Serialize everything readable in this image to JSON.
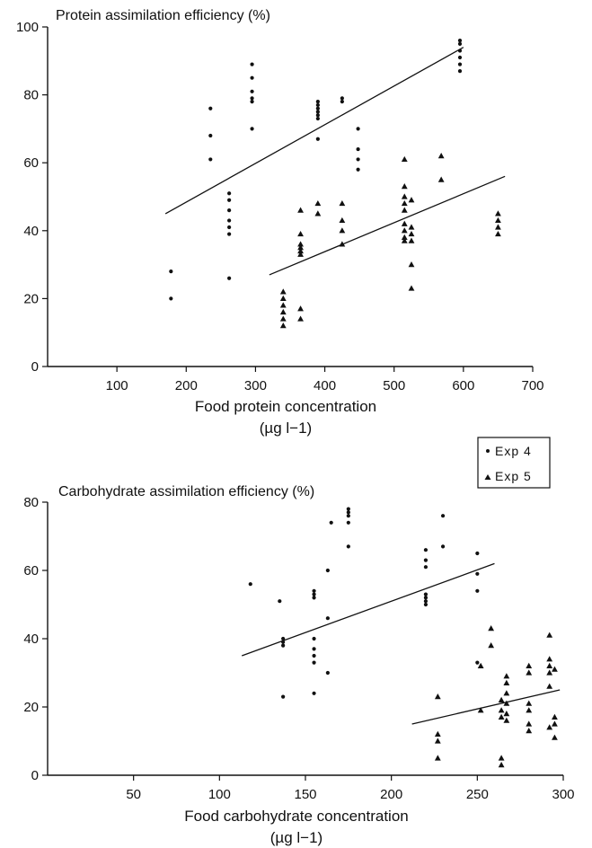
{
  "legend": {
    "entries": [
      {
        "marker": "•",
        "label": "Exp 4"
      },
      {
        "marker": "▲",
        "label": "Exp 5"
      }
    ]
  },
  "chart_data": [
    {
      "type": "scatter",
      "title": "Protein assimilation efficiency (%)",
      "xlabel": "Food protein concentration",
      "xunit": "(µg l−1)",
      "xlim": [
        0,
        700
      ],
      "ylim": [
        0,
        100
      ],
      "xticks": [
        100,
        200,
        300,
        400,
        500,
        600,
        700
      ],
      "yticks": [
        0,
        20,
        40,
        60,
        80,
        100
      ],
      "series": [
        {
          "name": "Exp 4",
          "marker": "dot",
          "points": [
            [
              178,
              28
            ],
            [
              178,
              20
            ],
            [
              235,
              76
            ],
            [
              235,
              68
            ],
            [
              235,
              61
            ],
            [
              262,
              51
            ],
            [
              262,
              49
            ],
            [
              262,
              46
            ],
            [
              262,
              43
            ],
            [
              262,
              41
            ],
            [
              262,
              39
            ],
            [
              262,
              26
            ],
            [
              295,
              89
            ],
            [
              295,
              85
            ],
            [
              295,
              81
            ],
            [
              295,
              79
            ],
            [
              295,
              78
            ],
            [
              295,
              70
            ],
            [
              390,
              78
            ],
            [
              390,
              77
            ],
            [
              390,
              76
            ],
            [
              390,
              75
            ],
            [
              390,
              74
            ],
            [
              390,
              73
            ],
            [
              390,
              67
            ],
            [
              425,
              79
            ],
            [
              425,
              78
            ],
            [
              448,
              70
            ],
            [
              448,
              64
            ],
            [
              448,
              61
            ],
            [
              448,
              58
            ],
            [
              595,
              96
            ],
            [
              595,
              95
            ],
            [
              595,
              93
            ],
            [
              595,
              91
            ],
            [
              595,
              89
            ],
            [
              595,
              87
            ]
          ],
          "fit": [
            [
              170,
              45
            ],
            [
              600,
              94
            ]
          ]
        },
        {
          "name": "Exp 5",
          "marker": "triangle",
          "points": [
            [
              340,
              22
            ],
            [
              340,
              20
            ],
            [
              340,
              18
            ],
            [
              340,
              16
            ],
            [
              340,
              14
            ],
            [
              340,
              12
            ],
            [
              365,
              46
            ],
            [
              365,
              39
            ],
            [
              365,
              36
            ],
            [
              365,
              35
            ],
            [
              365,
              34
            ],
            [
              365,
              33
            ],
            [
              365,
              17
            ],
            [
              365,
              14
            ],
            [
              390,
              48
            ],
            [
              390,
              45
            ],
            [
              425,
              48
            ],
            [
              425,
              43
            ],
            [
              425,
              40
            ],
            [
              425,
              36
            ],
            [
              515,
              61
            ],
            [
              515,
              53
            ],
            [
              515,
              50
            ],
            [
              515,
              48
            ],
            [
              515,
              46
            ],
            [
              515,
              42
            ],
            [
              515,
              40
            ],
            [
              515,
              38
            ],
            [
              515,
              37
            ],
            [
              525,
              49
            ],
            [
              525,
              41
            ],
            [
              525,
              39
            ],
            [
              525,
              37
            ],
            [
              525,
              30
            ],
            [
              525,
              23
            ],
            [
              568,
              62
            ],
            [
              568,
              55
            ],
            [
              650,
              45
            ],
            [
              650,
              43
            ],
            [
              650,
              41
            ],
            [
              650,
              39
            ]
          ],
          "fit": [
            [
              320,
              27
            ],
            [
              660,
              56
            ]
          ]
        }
      ]
    },
    {
      "type": "scatter",
      "title": "Carbohydrate assimilation efficiency (%)",
      "xlabel": "Food carbohydrate concentration",
      "xunit": "(µg l−1)",
      "xlim": [
        0,
        300
      ],
      "ylim": [
        0,
        80
      ],
      "xticks": [
        50,
        100,
        150,
        200,
        250,
        300
      ],
      "yticks": [
        0,
        20,
        40,
        60,
        80
      ],
      "series": [
        {
          "name": "Exp 4",
          "marker": "dot",
          "points": [
            [
              118,
              56
            ],
            [
              135,
              51
            ],
            [
              137,
              23
            ],
            [
              137,
              40
            ],
            [
              137,
              39
            ],
            [
              137,
              38
            ],
            [
              155,
              54
            ],
            [
              155,
              53
            ],
            [
              155,
              52
            ],
            [
              155,
              40
            ],
            [
              155,
              37
            ],
            [
              155,
              35
            ],
            [
              155,
              33
            ],
            [
              155,
              24
            ],
            [
              163,
              46
            ],
            [
              163,
              30
            ],
            [
              163,
              60
            ],
            [
              165,
              74
            ],
            [
              175,
              78
            ],
            [
              175,
              77
            ],
            [
              175,
              76
            ],
            [
              175,
              74
            ],
            [
              175,
              67
            ],
            [
              220,
              66
            ],
            [
              220,
              63
            ],
            [
              220,
              61
            ],
            [
              220,
              53
            ],
            [
              220,
              52
            ],
            [
              220,
              51
            ],
            [
              220,
              50
            ],
            [
              230,
              76
            ],
            [
              230,
              67
            ],
            [
              250,
              65
            ],
            [
              250,
              59
            ],
            [
              250,
              54
            ],
            [
              250,
              33
            ]
          ],
          "fit": [
            [
              113,
              35
            ],
            [
              260,
              62
            ]
          ]
        },
        {
          "name": "Exp 5",
          "marker": "triangle",
          "points": [
            [
              227,
              23
            ],
            [
              227,
              12
            ],
            [
              227,
              10
            ],
            [
              227,
              5
            ],
            [
              252,
              32
            ],
            [
              252,
              19
            ],
            [
              258,
              43
            ],
            [
              258,
              38
            ],
            [
              264,
              22
            ],
            [
              264,
              19
            ],
            [
              264,
              17
            ],
            [
              264,
              5
            ],
            [
              264,
              3
            ],
            [
              267,
              29
            ],
            [
              267,
              27
            ],
            [
              267,
              24
            ],
            [
              267,
              21
            ],
            [
              267,
              18
            ],
            [
              267,
              16
            ],
            [
              280,
              32
            ],
            [
              280,
              30
            ],
            [
              280,
              21
            ],
            [
              280,
              19
            ],
            [
              280,
              15
            ],
            [
              280,
              13
            ],
            [
              292,
              41
            ],
            [
              292,
              34
            ],
            [
              292,
              32
            ],
            [
              292,
              30
            ],
            [
              292,
              26
            ],
            [
              292,
              14
            ],
            [
              295,
              31
            ],
            [
              295,
              17
            ],
            [
              295,
              15
            ],
            [
              295,
              11
            ]
          ],
          "fit": [
            [
              212,
              15
            ],
            [
              298,
              25
            ]
          ]
        }
      ]
    }
  ]
}
